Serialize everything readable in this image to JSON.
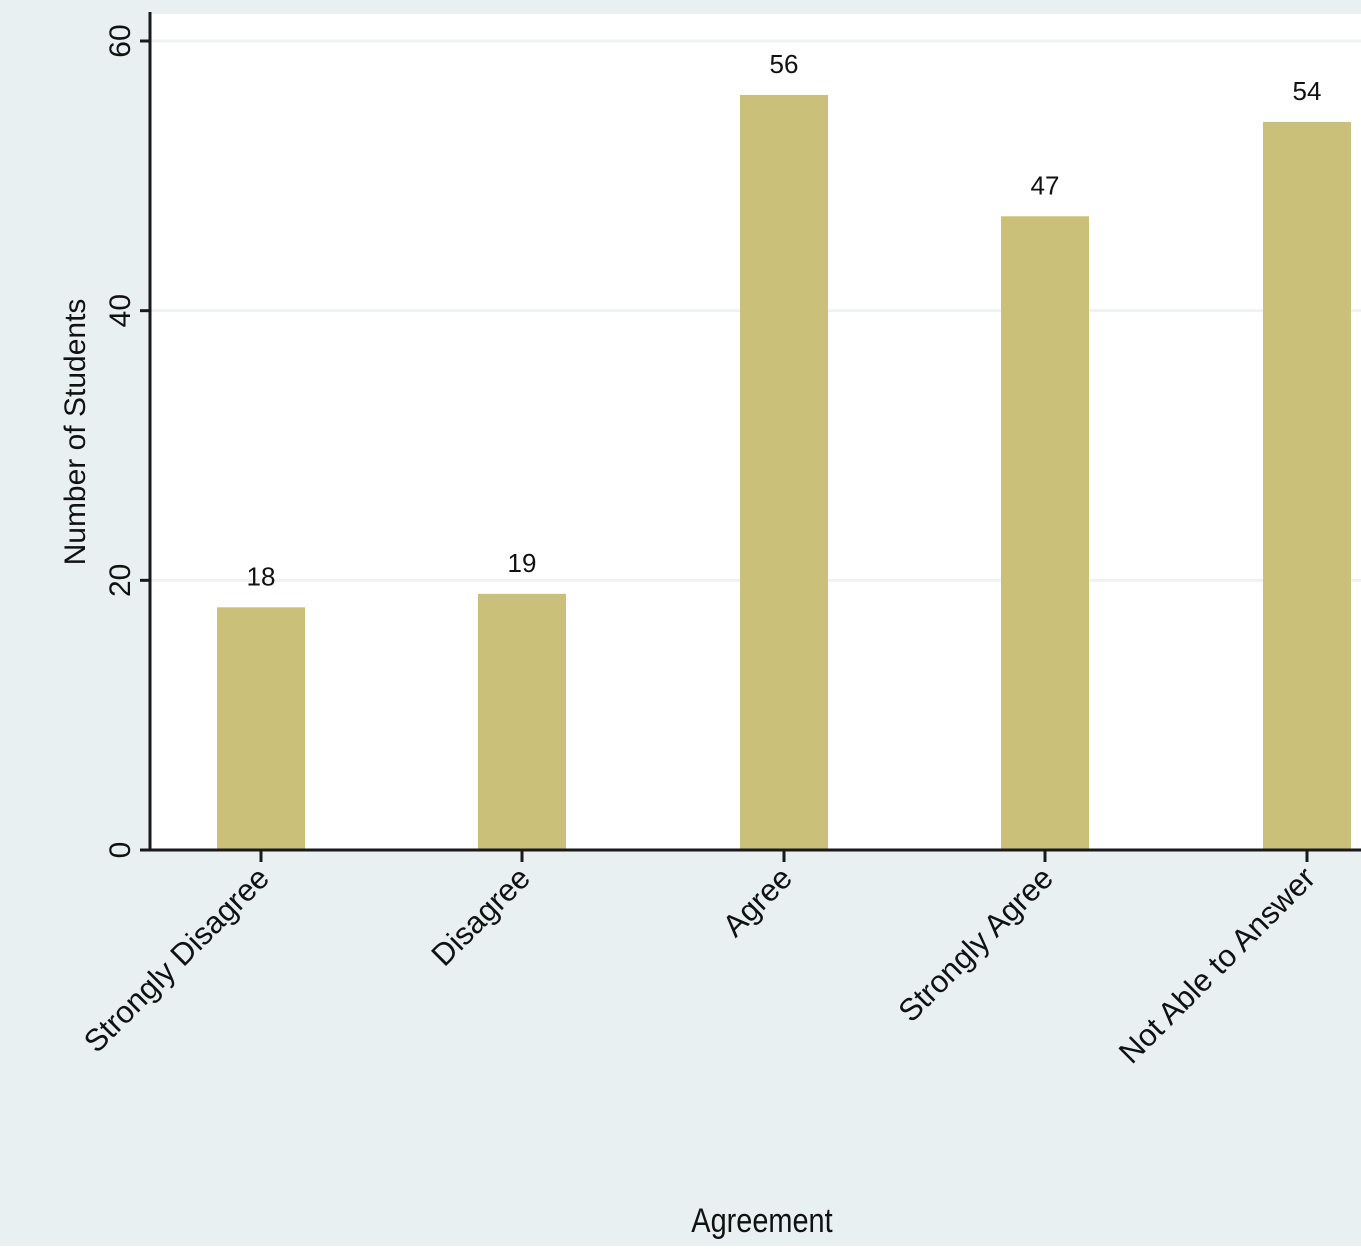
{
  "colors": {
    "outer_background": "#e9f0f1",
    "plot_background": "#ffffff",
    "bar_fill": "#cbc07a",
    "gridline": "#eef2f3",
    "axis": "#1a1a1a"
  },
  "chart_data": {
    "type": "bar",
    "categories": [
      "Strongly Disagree",
      "Disagree",
      "Agree",
      "Strongly Agree",
      "Not Able to Answer"
    ],
    "values": [
      18,
      19,
      56,
      47,
      54
    ],
    "data_labels": [
      "18",
      "19",
      "56",
      "47",
      "54"
    ],
    "xlabel": "Agreement",
    "ylabel": "Number of Students",
    "ylim": [
      0,
      60
    ],
    "yticks": [
      0,
      20,
      40,
      60
    ],
    "ytick_labels": [
      "0",
      "20",
      "40",
      "60"
    ],
    "grid": true,
    "legend": "none"
  }
}
